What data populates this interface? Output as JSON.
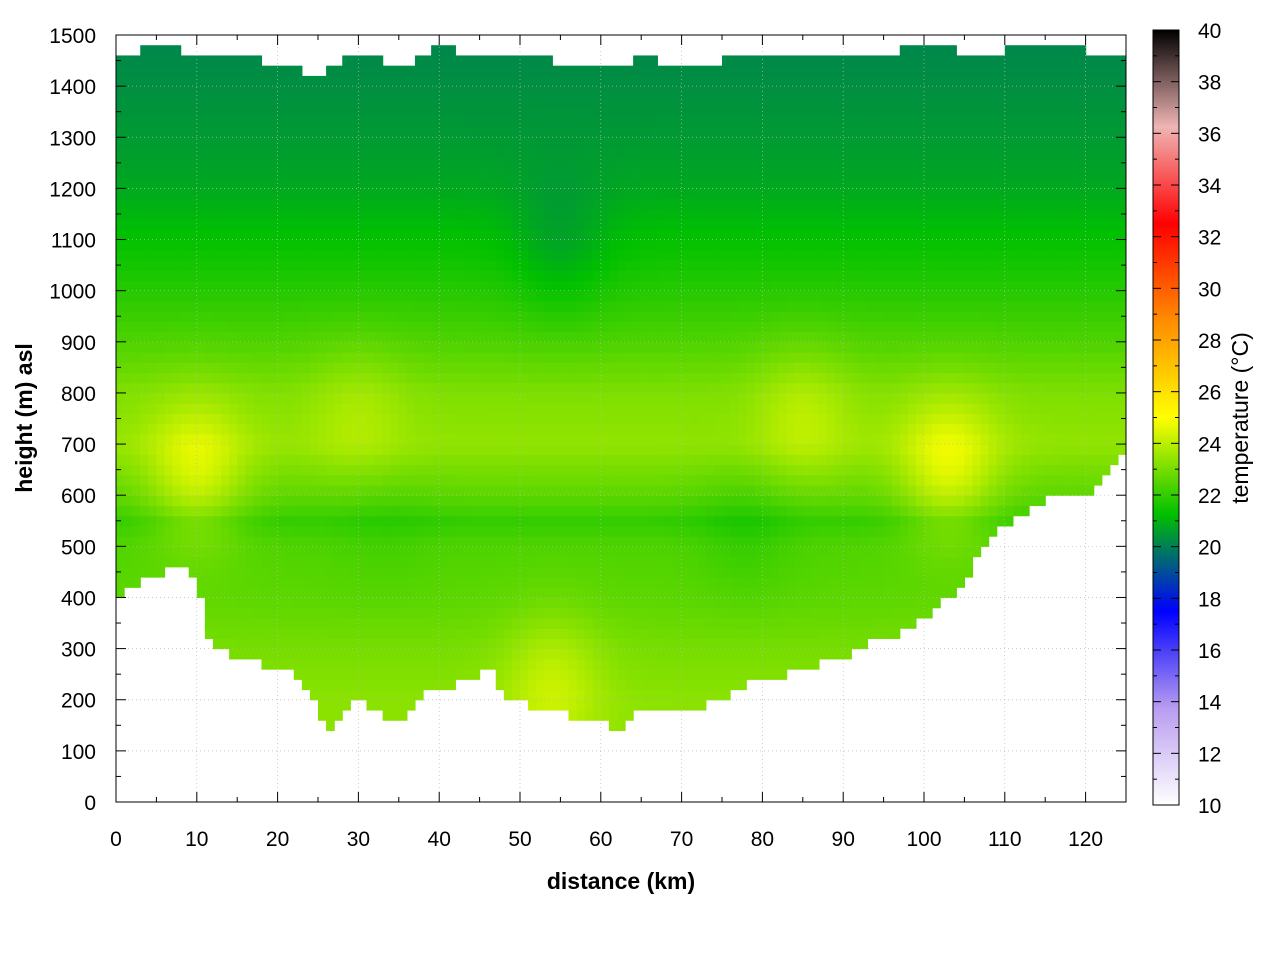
{
  "chart_data": {
    "type": "heatmap",
    "xlabel": "distance (km)",
    "ylabel": "height (m) asl",
    "xlim": [
      0,
      125
    ],
    "ylim": [
      0,
      1500
    ],
    "x_ticks": [
      0,
      10,
      20,
      30,
      40,
      50,
      60,
      70,
      80,
      90,
      100,
      110,
      120
    ],
    "y_ticks": [
      0,
      100,
      200,
      300,
      400,
      500,
      600,
      700,
      800,
      900,
      1000,
      1100,
      1200,
      1300,
      1400,
      1500
    ],
    "grid": true,
    "colorbar": {
      "label": "temperature (°C)",
      "range": [
        10,
        40
      ],
      "ticks": [
        10,
        12,
        14,
        16,
        18,
        20,
        22,
        24,
        26,
        28,
        30,
        32,
        34,
        36,
        38,
        40
      ],
      "colors": [
        "#ffffff",
        "#b89cf0",
        "#0000ff",
        "#00c000",
        "#ffff00",
        "#ff8c00",
        "#ff0000",
        "#f0b4b4",
        "#000000"
      ]
    },
    "terrain_height": {
      "distance": [
        0,
        2,
        4,
        7,
        10,
        11,
        13,
        15,
        17,
        20,
        22,
        24,
        26,
        28,
        30,
        32,
        35,
        37,
        40,
        43,
        46,
        48,
        50,
        52,
        55,
        57,
        60,
        62,
        64,
        66,
        70,
        75,
        78,
        80,
        85,
        90,
        94,
        96,
        100,
        103,
        106,
        110,
        115,
        118,
        120,
        122,
        125
      ],
      "height": [
        400,
        425,
        435,
        460,
        445,
        340,
        295,
        285,
        275,
        250,
        260,
        220,
        140,
        170,
        200,
        185,
        145,
        200,
        225,
        235,
        265,
        210,
        200,
        185,
        175,
        165,
        155,
        140,
        175,
        170,
        185,
        195,
        230,
        240,
        260,
        285,
        320,
        315,
        360,
        400,
        460,
        545,
        590,
        610,
        595,
        640,
        690
      ]
    },
    "top_height": {
      "distance": [
        0,
        5,
        10,
        15,
        20,
        25,
        30,
        35,
        40,
        45,
        50,
        55,
        60,
        65,
        70,
        75,
        80,
        85,
        90,
        95,
        100,
        105,
        110,
        115,
        120,
        125
      ],
      "height": [
        1455,
        1480,
        1460,
        1465,
        1440,
        1420,
        1470,
        1430,
        1480,
        1450,
        1465,
        1445,
        1430,
        1455,
        1440,
        1450,
        1465,
        1450,
        1470,
        1460,
        1485,
        1465,
        1470,
        1490,
        1470,
        1460
      ]
    },
    "temperature_profile": {
      "height": [
        0,
        200,
        300,
        400,
        500,
        550,
        600,
        650,
        700,
        800,
        900,
        1000,
        1100,
        1200,
        1300,
        1400,
        1500
      ],
      "temperature": [
        23.3,
        23.3,
        23.0,
        22.6,
        22.4,
        22.0,
        22.6,
        23.0,
        23.4,
        23.1,
        22.4,
        21.8,
        21.3,
        20.8,
        20.5,
        20.3,
        20.1
      ]
    },
    "warm_features": [
      {
        "distance": 10,
        "height": 640,
        "temperature": 24.4
      },
      {
        "distance": 103,
        "height": 650,
        "temperature": 24.6
      },
      {
        "distance": 54,
        "height": 230,
        "temperature": 24.2
      },
      {
        "distance": 30,
        "height": 760,
        "temperature": 23.8
      },
      {
        "distance": 85,
        "height": 760,
        "temperature": 24.0
      }
    ],
    "cool_features": [
      {
        "distance": 55,
        "height": 1080,
        "temperature": 20.8
      },
      {
        "distance": 33,
        "height": 550,
        "temperature": 21.8
      },
      {
        "distance": 78,
        "height": 540,
        "temperature": 21.7
      }
    ]
  }
}
